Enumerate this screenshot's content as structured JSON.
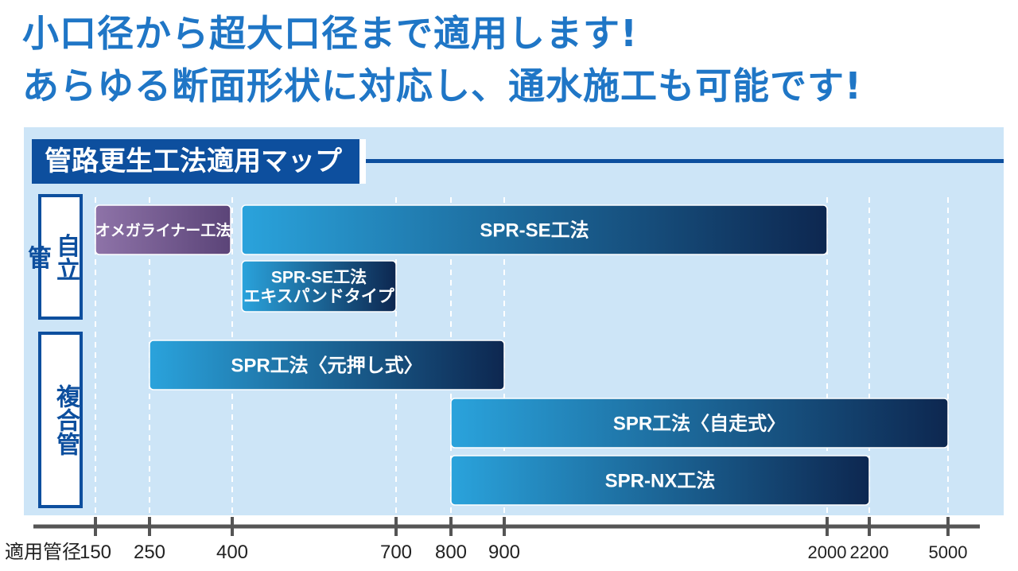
{
  "headline": {
    "line1": "小口径から超大口径まで適用します!",
    "line2": "あらゆる断面形状に対応し、通水施工も可能です!"
  },
  "map_title": "管路更生工法適用マップ",
  "categories": {
    "self_standing": "自立管",
    "composite": "複合管"
  },
  "colors": {
    "bar_blue_start": "#2aa3dc",
    "bar_blue_end": "#0d2750",
    "bar_purple_start": "#8e73a8",
    "bar_purple_end": "#5b4478",
    "heading_blue": "#1f76c6",
    "panel_bg": "#cde5f7"
  },
  "chart_data": {
    "type": "range-bar",
    "xlabel": "適用管径",
    "ticks": [
      150,
      250,
      400,
      700,
      800,
      900,
      2000,
      2200,
      5000
    ],
    "tick_labels": [
      "150",
      "250",
      "400",
      "700",
      "800",
      "900",
      "2000",
      "2200",
      "5000"
    ],
    "scale": "piecewise",
    "gridlines": true,
    "bars": [
      {
        "label": [
          "オメガライナー工法"
        ],
        "category": "自立管",
        "start": 150,
        "end": 400,
        "row": 0,
        "style": "purple"
      },
      {
        "label": [
          "SPR-SE工法"
        ],
        "category": "自立管",
        "start": 400,
        "end": 2000,
        "row": 0,
        "style": "blue"
      },
      {
        "label": [
          "SPR-SE工法",
          "エキスパンドタイプ"
        ],
        "category": "自立管",
        "start": 400,
        "end": 700,
        "row": 1,
        "style": "blue"
      },
      {
        "label": [
          "SPR工法〈元押し式〉"
        ],
        "category": "複合管",
        "start": 250,
        "end": 900,
        "row": 2,
        "style": "blue"
      },
      {
        "label": [
          "SPR工法〈自走式〉"
        ],
        "category": "複合管",
        "start": 800,
        "end": 5000,
        "row": 3,
        "style": "blue"
      },
      {
        "label": [
          "SPR-NX工法"
        ],
        "category": "複合管",
        "start": 800,
        "end": 2200,
        "row": 4,
        "style": "blue"
      }
    ]
  }
}
